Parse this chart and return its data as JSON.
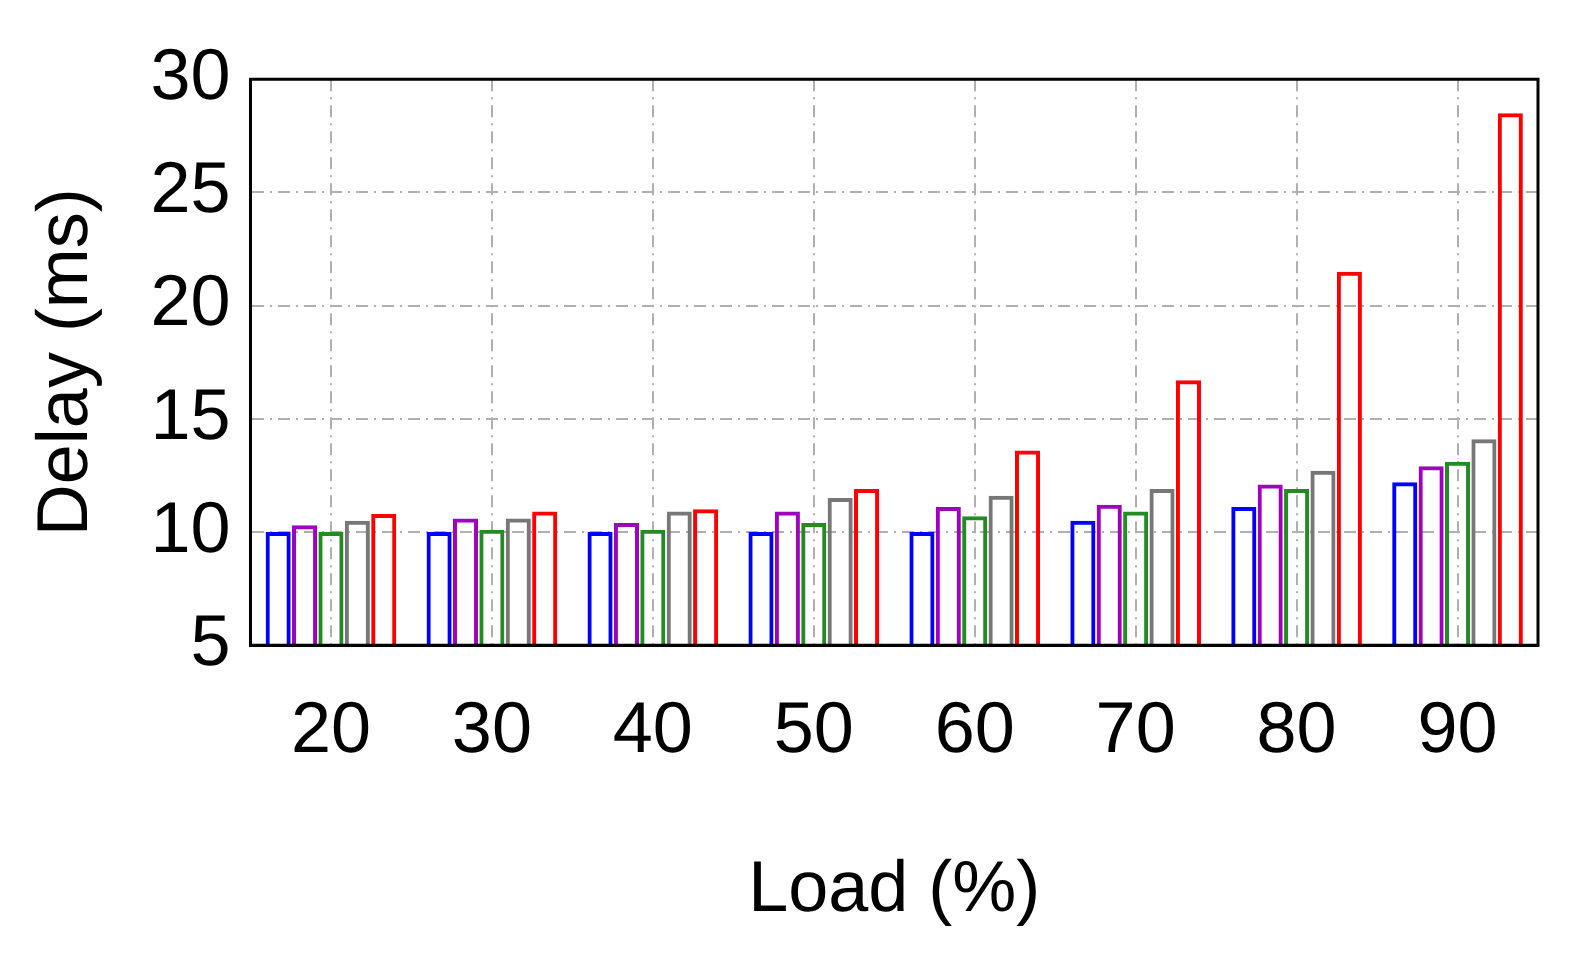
{
  "chart_data": {
    "type": "bar",
    "xlabel": "Load (%)",
    "ylabel": "Delay (ms)",
    "categories": [
      "20",
      "30",
      "40",
      "50",
      "60",
      "70",
      "80",
      "90"
    ],
    "series": [
      {
        "color": "#0000ff",
        "values": [
          10.0,
          10.0,
          10.0,
          10.0,
          10.0,
          10.5,
          11.1,
          12.2
        ]
      },
      {
        "color": "#a000c0",
        "values": [
          10.3,
          10.6,
          10.4,
          10.9,
          11.1,
          11.2,
          12.1,
          12.9
        ]
      },
      {
        "color": "#228b22",
        "values": [
          10.0,
          10.1,
          10.1,
          10.4,
          10.7,
          10.9,
          11.9,
          13.1
        ]
      },
      {
        "color": "#777777",
        "values": [
          10.5,
          10.6,
          10.9,
          11.5,
          11.6,
          11.9,
          12.7,
          14.1
        ]
      },
      {
        "color": "#ff0000",
        "values": [
          10.8,
          10.9,
          11.0,
          11.9,
          13.6,
          16.7,
          21.5,
          28.5
        ]
      }
    ],
    "ylim": [
      5,
      30
    ],
    "yticks": [
      5,
      10,
      15,
      20,
      25,
      30
    ],
    "grid": true,
    "legend": false
  }
}
